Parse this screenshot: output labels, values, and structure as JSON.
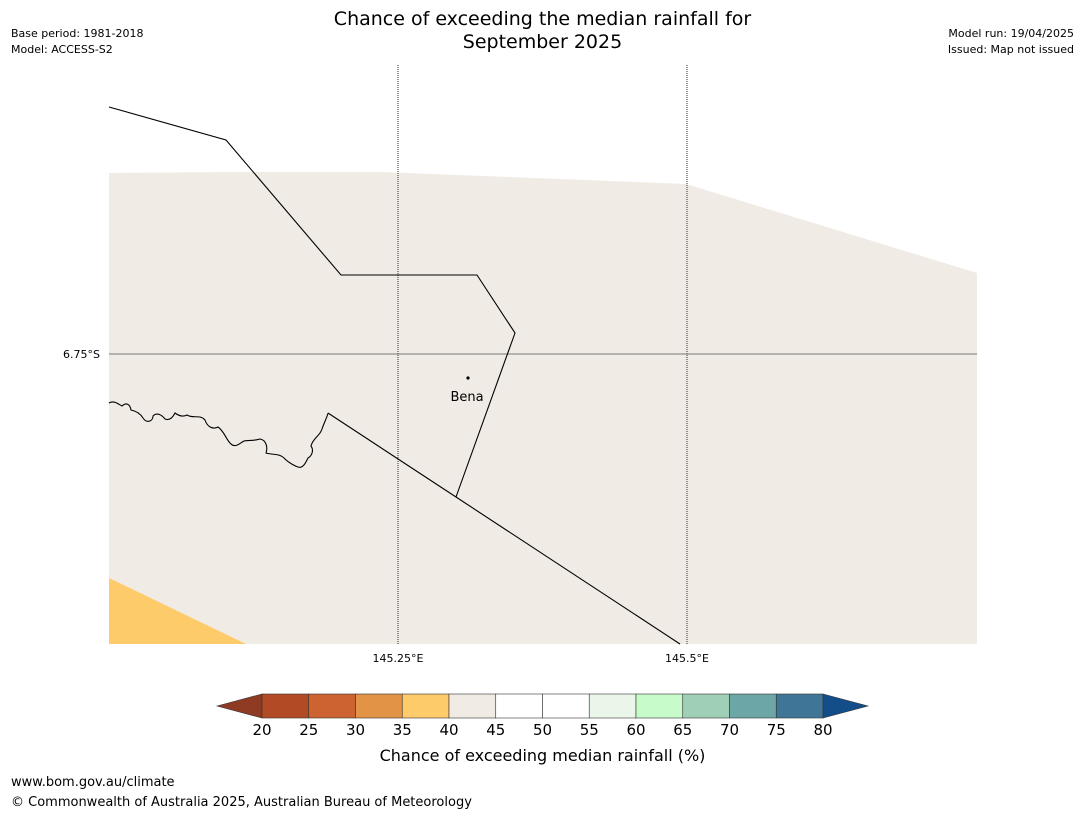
{
  "header": {
    "title_line1": "Chance of exceeding the median rainfall for",
    "title_line2": "September 2025",
    "base_period": "Base period: 1981-2018",
    "model": "Model: ACCESS-S2",
    "model_run": "Model run: 19/04/2025",
    "issued": "Issued: Map not issued"
  },
  "map": {
    "lat_label": "6.75°S",
    "lon_labels": [
      "145.25°E",
      "145.5°E"
    ],
    "place": "Bena",
    "colors": {
      "land": "#f0ebe5",
      "band_35_40": "#fecb6a",
      "border": "#000000",
      "gridline": "#000000"
    }
  },
  "colorbar": {
    "title": "Chance of exceeding median rainfall (%)",
    "ticks": [
      "20",
      "25",
      "30",
      "35",
      "40",
      "45",
      "50",
      "55",
      "60",
      "65",
      "70",
      "75",
      "80"
    ],
    "under_color": "#8f3a23",
    "over_color": "#134e8b",
    "bins": [
      "#b14a25",
      "#cd6331",
      "#e29345",
      "#fecb6a",
      "#f0ebe5",
      "#ffffff",
      "#ffffff",
      "#eaf6ea",
      "#c7fbca",
      "#9fd0b7",
      "#6da6a6",
      "#3f7697"
    ]
  },
  "footer": {
    "url": "www.bom.gov.au/climate",
    "copyright": "© Commonwealth of Australia 2025, Australian Bureau of Meteorology"
  }
}
